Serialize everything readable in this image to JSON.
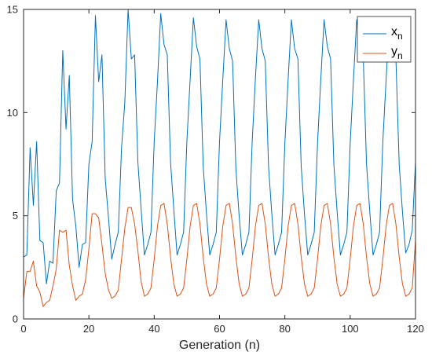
{
  "chart_data": {
    "type": "line",
    "title": "",
    "xlabel": "Generation (n)",
    "ylabel": "",
    "xlim": [
      0,
      120
    ],
    "ylim": [
      0,
      15
    ],
    "xticks": [
      0,
      20,
      40,
      60,
      80,
      100,
      120
    ],
    "yticks": [
      0,
      5,
      10,
      15
    ],
    "grid": false,
    "legend_position": "top-right",
    "x": [
      0,
      1,
      2,
      3,
      4,
      5,
      6,
      7,
      8,
      9,
      10,
      11,
      12,
      13,
      14,
      15,
      16,
      17,
      18,
      19,
      20,
      21,
      22,
      23,
      24,
      25,
      26,
      27,
      28,
      29,
      30,
      31,
      32,
      33,
      34,
      35,
      36,
      37,
      38,
      39,
      40,
      41,
      42,
      43,
      44,
      45,
      46,
      47,
      48,
      49,
      50,
      51,
      52,
      53,
      54,
      55,
      56,
      57,
      58,
      59,
      60,
      61,
      62,
      63,
      64,
      65,
      66,
      67,
      68,
      69,
      70,
      71,
      72,
      73,
      74,
      75,
      76,
      77,
      78,
      79,
      80,
      81,
      82,
      83,
      84,
      85,
      86,
      87,
      88,
      89,
      90,
      91,
      92,
      93,
      94,
      95,
      96,
      97,
      98,
      99,
      100,
      101,
      102,
      103,
      104,
      105,
      106,
      107,
      108,
      109,
      110,
      111,
      112,
      113,
      114,
      115,
      116,
      117,
      118,
      119,
      120
    ],
    "series": [
      {
        "name": "x",
        "subscript": "n",
        "color": "#0072BD",
        "values": [
          3.0,
          3.1,
          8.3,
          5.5,
          8.6,
          3.8,
          3.7,
          1.7,
          2.8,
          2.7,
          6.2,
          6.6,
          13.0,
          9.2,
          11.8,
          5.8,
          4.5,
          2.5,
          3.6,
          3.7,
          7.5,
          8.6,
          14.7,
          11.5,
          12.8,
          6.8,
          4.9,
          2.9,
          3.6,
          4.2,
          8.3,
          10.5,
          15.0,
          12.6,
          12.8,
          7.6,
          5.3,
          3.1,
          3.6,
          4.2,
          8.6,
          11.5,
          14.8,
          13.3,
          12.8,
          7.6,
          5.3,
          3.1,
          3.6,
          4.2,
          8.6,
          11.6,
          14.6,
          13.2,
          12.6,
          7.4,
          5.1,
          3.1,
          3.6,
          4.2,
          8.6,
          11.6,
          14.5,
          13.1,
          12.5,
          7.3,
          5.0,
          3.1,
          3.6,
          4.2,
          8.6,
          11.7,
          14.5,
          13.1,
          12.5,
          7.4,
          5.1,
          3.1,
          3.6,
          4.2,
          8.5,
          11.6,
          14.5,
          13.1,
          12.6,
          7.4,
          5.1,
          3.1,
          3.6,
          4.2,
          8.5,
          11.6,
          14.5,
          13.2,
          12.6,
          7.5,
          5.2,
          3.1,
          3.6,
          4.2,
          8.5,
          11.6,
          14.5,
          13.2,
          12.7,
          7.5,
          5.2,
          3.1,
          3.6,
          4.2,
          8.6,
          11.6,
          14.6,
          13.2,
          12.6,
          7.5,
          5.2,
          3.2,
          3.6,
          4.3,
          7.6
        ]
      },
      {
        "name": "y",
        "subscript": "n",
        "color": "#D95319",
        "values": [
          1.0,
          2.3,
          2.3,
          2.8,
          1.6,
          1.3,
          0.6,
          0.8,
          0.9,
          1.6,
          2.4,
          4.3,
          4.2,
          4.3,
          2.6,
          1.6,
          0.9,
          1.1,
          1.2,
          1.9,
          3.4,
          5.1,
          5.1,
          4.9,
          3.6,
          2.2,
          1.4,
          1.0,
          1.1,
          1.4,
          2.9,
          4.4,
          5.4,
          5.4,
          4.6,
          3.3,
          1.8,
          1.1,
          1.2,
          1.5,
          2.9,
          4.5,
          5.5,
          5.6,
          4.6,
          3.0,
          1.7,
          1.1,
          1.2,
          1.5,
          2.9,
          4.5,
          5.5,
          5.6,
          4.6,
          3.0,
          1.7,
          1.1,
          1.2,
          1.5,
          2.9,
          4.5,
          5.5,
          5.6,
          4.6,
          3.0,
          1.7,
          1.1,
          1.2,
          1.5,
          2.9,
          4.5,
          5.5,
          5.6,
          4.6,
          3.0,
          1.7,
          1.1,
          1.2,
          1.5,
          2.9,
          4.5,
          5.5,
          5.6,
          4.6,
          3.0,
          1.7,
          1.1,
          1.2,
          1.5,
          2.9,
          4.5,
          5.5,
          5.6,
          4.6,
          3.0,
          1.7,
          1.1,
          1.2,
          1.5,
          2.9,
          4.5,
          5.5,
          5.6,
          4.6,
          3.0,
          1.7,
          1.1,
          1.2,
          1.5,
          2.9,
          4.5,
          5.5,
          5.6,
          4.6,
          3.0,
          1.7,
          1.1,
          1.2,
          1.5,
          3.8
        ]
      }
    ]
  }
}
